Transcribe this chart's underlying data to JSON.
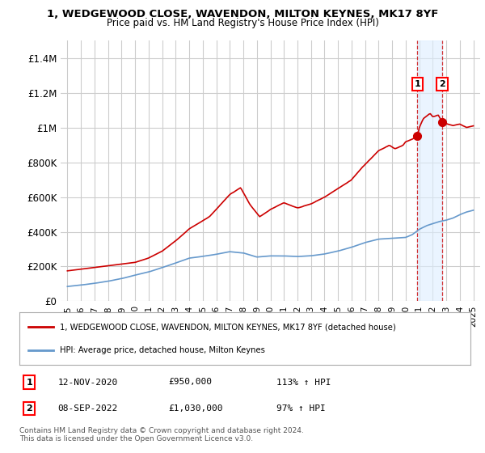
{
  "title": "1, WEDGEWOOD CLOSE, WAVENDON, MILTON KEYNES, MK17 8YF",
  "subtitle": "Price paid vs. HM Land Registry's House Price Index (HPI)",
  "ylim": [
    0,
    1500000
  ],
  "yticks": [
    0,
    200000,
    400000,
    600000,
    800000,
    1000000,
    1200000,
    1400000
  ],
  "ytick_labels": [
    "£0",
    "£200K",
    "£400K",
    "£600K",
    "£800K",
    "£1M",
    "£1.2M",
    "£1.4M"
  ],
  "red_color": "#cc0000",
  "blue_color": "#6699cc",
  "marker1_x": 2020.87,
  "marker1_y": 950000,
  "marker2_x": 2022.69,
  "marker2_y": 1030000,
  "marker1_label": "1",
  "marker2_label": "2",
  "annotation1_date": "12-NOV-2020",
  "annotation1_price": "£950,000",
  "annotation1_hpi": "113% ↑ HPI",
  "annotation2_date": "08-SEP-2022",
  "annotation2_price": "£1,030,000",
  "annotation2_hpi": "97% ↑ HPI",
  "legend_line1": "1, WEDGEWOOD CLOSE, WAVENDON, MILTON KEYNES, MK17 8YF (detached house)",
  "legend_line2": "HPI: Average price, detached house, Milton Keynes",
  "footer": "Contains HM Land Registry data © Crown copyright and database right 2024.\nThis data is licensed under the Open Government Licence v3.0.",
  "bg_color": "#ffffff",
  "grid_color": "#cccccc",
  "shade_color": "#ddeeff",
  "xmin": 1995.0,
  "xmax": 2025.2,
  "shade_x1": 2020.87,
  "shade_x2": 2022.69
}
